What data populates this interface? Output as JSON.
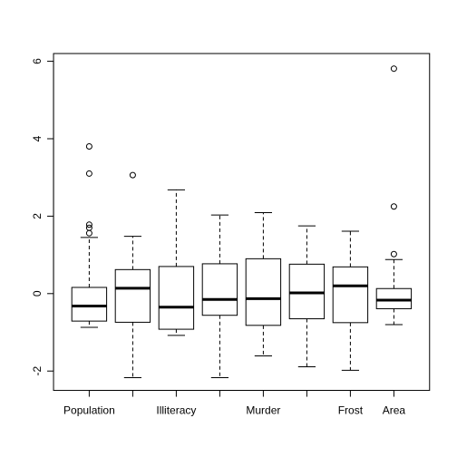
{
  "chart_data": {
    "type": "boxplot",
    "ylim": [
      -2.5,
      6.2
    ],
    "yticks": [
      -2,
      0,
      2,
      4,
      6
    ],
    "ytick_labels": [
      "-2",
      "0",
      "2",
      "4",
      "6"
    ],
    "grid": false,
    "x_tick_labels": [
      "Population",
      "",
      "Illiteracy",
      "",
      "Murder",
      "",
      "Frost",
      "Area"
    ],
    "boxes": [
      {
        "whisker_low": -0.87,
        "q1": -0.71,
        "median": -0.32,
        "q3": 0.16,
        "whisker_high": 1.45,
        "outliers": [
          1.56,
          1.7,
          1.78,
          3.1,
          3.8
        ]
      },
      {
        "whisker_low": -2.17,
        "q1": -0.74,
        "median": 0.14,
        "q3": 0.62,
        "whisker_high": 1.48,
        "outliers": [
          3.06
        ]
      },
      {
        "whisker_low": -1.08,
        "q1": -0.92,
        "median": -0.35,
        "q3": 0.7,
        "whisker_high": 2.68,
        "outliers": []
      },
      {
        "whisker_low": -2.17,
        "q1": -0.56,
        "median": -0.15,
        "q3": 0.77,
        "whisker_high": 2.03,
        "outliers": []
      },
      {
        "whisker_low": -1.61,
        "q1": -0.82,
        "median": -0.13,
        "q3": 0.9,
        "whisker_high": 2.09,
        "outliers": []
      },
      {
        "whisker_low": -1.89,
        "q1": -0.65,
        "median": 0.02,
        "q3": 0.76,
        "whisker_high": 1.75,
        "outliers": []
      },
      {
        "whisker_low": -1.98,
        "q1": -0.75,
        "median": 0.2,
        "q3": 0.69,
        "whisker_high": 1.61,
        "outliers": []
      },
      {
        "whisker_low": -0.8,
        "q1": -0.39,
        "median": -0.17,
        "q3": 0.13,
        "whisker_high": 0.88,
        "outliers": [
          1.02,
          2.25,
          5.81
        ]
      }
    ]
  }
}
